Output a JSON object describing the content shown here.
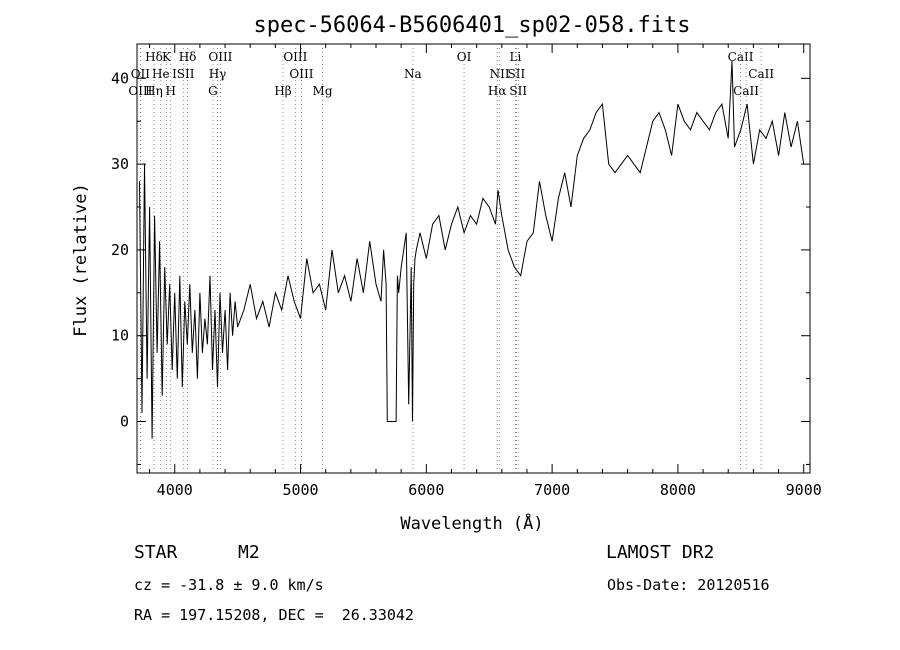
{
  "chart_data": {
    "type": "line",
    "title": "spec-56064-B5606401_sp02-058.fits",
    "xlabel": "Wavelength (Å)",
    "ylabel": "Flux (relative)",
    "xlim": [
      3700,
      9050
    ],
    "ylim": [
      -6,
      44
    ],
    "xticks": [
      4000,
      5000,
      6000,
      7000,
      8000,
      9000
    ],
    "yticks": [
      0,
      10,
      20,
      30,
      40
    ],
    "grid": false,
    "line_color": "#000000",
    "series": [
      {
        "x": [
          3720,
          3740,
          3760,
          3780,
          3800,
          3820,
          3840,
          3860,
          3880,
          3900,
          3920,
          3940,
          3960,
          3980,
          4000,
          4020,
          4040,
          4060,
          4080,
          4100,
          4120,
          4140,
          4160,
          4180,
          4200,
          4220,
          4240,
          4260,
          4280,
          4300,
          4320,
          4340,
          4360,
          4380,
          4400,
          4420,
          4440,
          4460,
          4480,
          4500,
          4550,
          4600,
          4650,
          4700,
          4750,
          4800,
          4850,
          4900,
          4950,
          5000,
          5050,
          5100,
          5150,
          5200,
          5250,
          5300,
          5350,
          5400,
          5450,
          5500,
          5550,
          5600,
          5640,
          5660,
          5680,
          5690,
          5700,
          5720,
          5740,
          5760,
          5770,
          5780,
          5800,
          5820,
          5840,
          5860,
          5880,
          5890,
          5900,
          5910,
          5920,
          5950,
          6000,
          6050,
          6100,
          6150,
          6200,
          6250,
          6300,
          6350,
          6400,
          6450,
          6500,
          6550,
          6570,
          6600,
          6650,
          6700,
          6750,
          6800,
          6850,
          6900,
          6950,
          7000,
          7050,
          7100,
          7150,
          7200,
          7250,
          7300,
          7350,
          7400,
          7450,
          7500,
          7550,
          7600,
          7650,
          7700,
          7750,
          7800,
          7850,
          7900,
          7950,
          8000,
          8050,
          8100,
          8150,
          8200,
          8250,
          8300,
          8350,
          8400,
          8430,
          8450,
          8500,
          8550,
          8600,
          8650,
          8700,
          8750,
          8800,
          8850,
          8900,
          8950,
          9000
        ],
        "y": [
          28,
          1,
          30,
          5,
          25,
          -2,
          24,
          8,
          21,
          3,
          18,
          9,
          16,
          6,
          15,
          5,
          17,
          4,
          14,
          9,
          16,
          8,
          13,
          5,
          15,
          8,
          12,
          9,
          17,
          6,
          13,
          4,
          15,
          8,
          13,
          6,
          15,
          10,
          14,
          11,
          13,
          16,
          12,
          14,
          11,
          15,
          13,
          17,
          14,
          12,
          19,
          15,
          16,
          13,
          20,
          15,
          17,
          14,
          19,
          15,
          21,
          16,
          14,
          20,
          16,
          0,
          0,
          0,
          0,
          0,
          17,
          15,
          18,
          20,
          22,
          2,
          18,
          0,
          16,
          19,
          20,
          22,
          19,
          23,
          24,
          20,
          23,
          25,
          22,
          24,
          23,
          26,
          25,
          23,
          27,
          24,
          20,
          18,
          17,
          21,
          22,
          28,
          24,
          21,
          26,
          29,
          25,
          31,
          33,
          34,
          36,
          37,
          30,
          29,
          30,
          31,
          30,
          29,
          32,
          35,
          36,
          34,
          31,
          37,
          35,
          34,
          36,
          35,
          34,
          36,
          37,
          33,
          42,
          32,
          34,
          37,
          30,
          34,
          33,
          35,
          31,
          36,
          32,
          35,
          30
        ]
      }
    ],
    "line_markers": [
      {
        "label": "Hδ",
        "x": 3835,
        "row": 1
      },
      {
        "label": "K",
        "x": 3934,
        "row": 1
      },
      {
        "label": "Hδ",
        "x": 4102,
        "row": 1
      },
      {
        "label": "OIII",
        "x": 4363,
        "row": 1
      },
      {
        "label": "OIII",
        "x": 4959,
        "row": 1
      },
      {
        "label": "OI",
        "x": 6300,
        "row": 1
      },
      {
        "label": "Li",
        "x": 6708,
        "row": 1
      },
      {
        "label": "CaII",
        "x": 8498,
        "row": 1
      },
      {
        "label": "OII",
        "x": 3727,
        "row": 2
      },
      {
        "label": "He",
        "x": 3889,
        "row": 2
      },
      {
        "label": "ISII",
        "x": 4068,
        "row": 2
      },
      {
        "label": "Hγ",
        "x": 4340,
        "row": 2
      },
      {
        "label": "OIII",
        "x": 5007,
        "row": 2
      },
      {
        "label": "Na",
        "x": 5893,
        "row": 2
      },
      {
        "label": "NII",
        "x": 6583,
        "row": 2
      },
      {
        "label": "SII",
        "x": 6716,
        "row": 2
      },
      {
        "label": "CaII",
        "x": 8662,
        "row": 2
      },
      {
        "label": "OIII",
        "x": 3727,
        "row": 3
      },
      {
        "label": "Hη",
        "x": 3835,
        "row": 3
      },
      {
        "label": "H",
        "x": 3968,
        "row": 3
      },
      {
        "label": "G",
        "x": 4304,
        "row": 3
      },
      {
        "label": "Hβ",
        "x": 4861,
        "row": 3
      },
      {
        "label": "Mg",
        "x": 5175,
        "row": 3
      },
      {
        "label": "Hα",
        "x": 6563,
        "row": 3
      },
      {
        "label": "SII",
        "x": 6731,
        "row": 3
      },
      {
        "label": "CaII",
        "x": 8542,
        "row": 3
      }
    ]
  },
  "info": {
    "object_class": "STAR",
    "subclass": "M2",
    "survey": "LAMOST DR2",
    "redshift": "cz = -31.8 ± 9.0 km/s",
    "obs_date": "Obs-Date: 20120516",
    "coords": "RA = 197.15208, DEC =  26.33042"
  }
}
